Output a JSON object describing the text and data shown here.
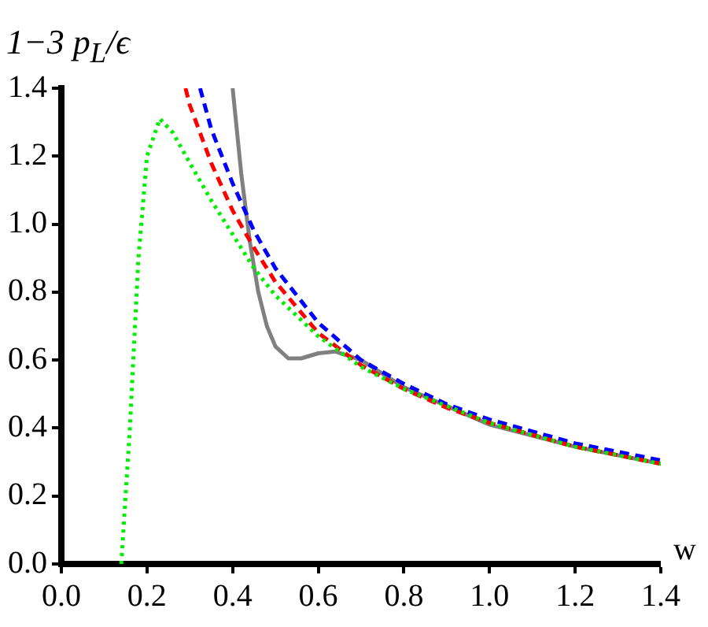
{
  "chart_data": {
    "type": "line",
    "xlabel": "w",
    "ylabel": "1−3 p$_{L}$/ϵ",
    "grid": false,
    "legend": false,
    "marker": "none",
    "xlim": [
      0,
      1.4
    ],
    "ylim": [
      0,
      1.4
    ],
    "xticks": [
      {
        "value": 0,
        "label": "0.0"
      },
      {
        "value": 0.2,
        "label": "0.2"
      },
      {
        "value": 0.4,
        "label": "0.4"
      },
      {
        "value": 0.6,
        "label": "0.6"
      },
      {
        "value": 0.8,
        "label": "0.8"
      },
      {
        "value": 1,
        "label": "1.0"
      },
      {
        "value": 1.2,
        "label": "1.2"
      },
      {
        "value": 1.4,
        "label": "1.4"
      }
    ],
    "yticks": [
      {
        "value": 0,
        "label": "0.0"
      },
      {
        "value": 0.2,
        "label": "0.2"
      },
      {
        "value": 0.4,
        "label": "0.4"
      },
      {
        "value": 0.6,
        "label": "0.6"
      },
      {
        "value": 0.8,
        "label": "0.8"
      },
      {
        "value": 1,
        "label": "1.0"
      },
      {
        "value": 1.2,
        "label": "1.2"
      },
      {
        "value": 1.4,
        "label": "1.4"
      }
    ],
    "series": [
      {
        "color": "#00ee00",
        "line_style": "dotted",
        "x": [
          0.14,
          0.16,
          0.18,
          0.2,
          0.23,
          0.26,
          0.3,
          0.35,
          0.4,
          0.45,
          0.5,
          0.6,
          0.7,
          0.8,
          1.0,
          1.2,
          1.4
        ],
        "values": [
          0,
          0.4,
          0.9,
          1.2,
          1.31,
          1.27,
          1.18,
          1.07,
          0.97,
          0.87,
          0.79,
          0.67,
          0.58,
          0.515,
          0.415,
          0.345,
          0.295
        ]
      },
      {
        "color": "#ff0000",
        "line_style": "dashed",
        "x": [
          0.29,
          0.3,
          0.35,
          0.4,
          0.45,
          0.5,
          0.6,
          0.7,
          0.8,
          0.9,
          1.0,
          1.2,
          1.4
        ],
        "values": [
          1.4,
          1.35,
          1.18,
          1.04,
          0.93,
          0.83,
          0.68,
          0.585,
          0.515,
          0.46,
          0.415,
          0.345,
          0.295
        ]
      },
      {
        "color": "#0000ff",
        "line_style": "dashed",
        "x": [
          0.324,
          0.35,
          0.4,
          0.45,
          0.5,
          0.6,
          0.7,
          0.8,
          0.9,
          1.0,
          1.2,
          1.4
        ],
        "values": [
          1.4,
          1.28,
          1.12,
          0.98,
          0.87,
          0.71,
          0.6,
          0.53,
          0.47,
          0.425,
          0.355,
          0.305
        ]
      },
      {
        "color": "#808080",
        "line_style": "solid",
        "x": [
          0.4,
          0.42,
          0.44,
          0.46,
          0.48,
          0.5,
          0.53,
          0.56,
          0.6,
          0.64,
          0.7,
          0.8,
          1.0,
          1.2,
          1.4
        ],
        "values": [
          1.4,
          1.15,
          0.95,
          0.8,
          0.7,
          0.64,
          0.605,
          0.605,
          0.62,
          0.625,
          0.6,
          0.52,
          0.41,
          0.345,
          0.295
        ]
      }
    ]
  }
}
